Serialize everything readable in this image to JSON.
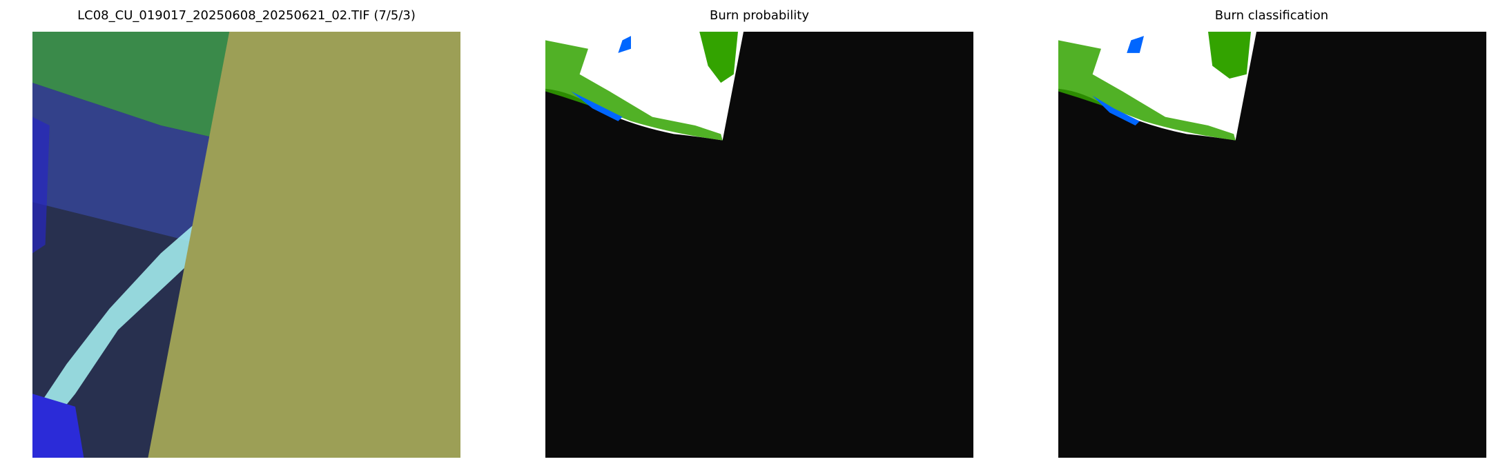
{
  "panels": [
    {
      "title": "LC08_CU_019017_20250608_20250621_02.TIF (7/5/3)",
      "kind": "false-color composite"
    },
    {
      "title": "Burn probability",
      "kind": "probability map"
    },
    {
      "title": "Burn classification",
      "kind": "classification map"
    }
  ],
  "colors": {
    "nodata_olive": "#9c9f56",
    "background_black": "#0a0a0a",
    "burn_green": "#33a300",
    "water_blue": "#0066ff",
    "land_green": "#3a8a4a",
    "water_dark_blue": "#2e3a78",
    "cloud_cyan": "#a8f4f4"
  }
}
